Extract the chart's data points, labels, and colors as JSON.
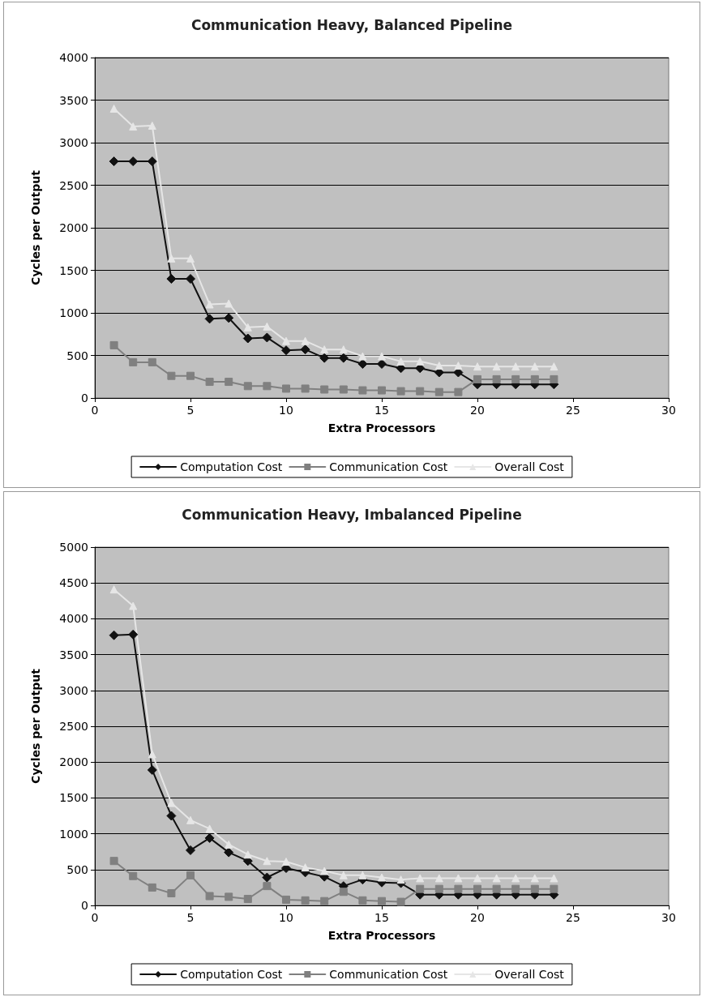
{
  "chart_data": [
    {
      "type": "line",
      "title": "Communication Heavy, Balanced Pipeline",
      "xlabel": "Extra Processors",
      "ylabel": "Cycles per Output",
      "x": [
        1,
        2,
        3,
        4,
        5,
        6,
        7,
        8,
        9,
        10,
        11,
        12,
        13,
        14,
        15,
        16,
        17,
        18,
        19,
        20,
        21,
        22,
        23,
        24
      ],
      "xlim": [
        0,
        30
      ],
      "xticks": [
        0,
        5,
        10,
        15,
        20,
        25,
        30
      ],
      "ylim": [
        0,
        4000
      ],
      "yticks": [
        0,
        500,
        1000,
        1500,
        2000,
        2500,
        3000,
        3500,
        4000
      ],
      "grid": "y",
      "legend": "bottom",
      "line_style": "solid",
      "series": [
        {
          "name": "Computation Cost",
          "color": "#111111",
          "marker": "diamond",
          "values": [
            2780,
            2780,
            2780,
            1400,
            1400,
            930,
            940,
            700,
            710,
            560,
            570,
            470,
            470,
            400,
            400,
            350,
            350,
            300,
            300,
            160,
            160,
            160,
            160,
            160
          ]
        },
        {
          "name": "Communication Cost",
          "color": "#808080",
          "marker": "square",
          "values": [
            620,
            420,
            420,
            260,
            260,
            190,
            190,
            140,
            140,
            110,
            110,
            100,
            100,
            90,
            90,
            80,
            80,
            70,
            70,
            220,
            220,
            220,
            220,
            220
          ]
        },
        {
          "name": "Overall Cost",
          "color": "#e6e6e6",
          "marker": "triangle",
          "values": [
            3400,
            3190,
            3200,
            1640,
            1640,
            1100,
            1110,
            830,
            840,
            670,
            670,
            570,
            570,
            490,
            490,
            430,
            430,
            380,
            380,
            370,
            370,
            370,
            370,
            370
          ]
        }
      ]
    },
    {
      "type": "line",
      "title": "Communication Heavy, Imbalanced Pipeline",
      "xlabel": "Extra Processors",
      "ylabel": "Cycles per Output",
      "x": [
        1,
        2,
        3,
        4,
        5,
        6,
        7,
        8,
        9,
        10,
        11,
        12,
        13,
        14,
        15,
        16,
        17,
        18,
        19,
        20,
        21,
        22,
        23,
        24
      ],
      "xlim": [
        0,
        30
      ],
      "xticks": [
        0,
        5,
        10,
        15,
        20,
        25,
        30
      ],
      "ylim": [
        0,
        5000
      ],
      "yticks": [
        0,
        500,
        1000,
        1500,
        2000,
        2500,
        3000,
        3500,
        4000,
        4500,
        5000
      ],
      "grid": "y",
      "legend": "bottom",
      "line_style": "solid",
      "series": [
        {
          "name": "Computation Cost",
          "color": "#111111",
          "marker": "diamond",
          "values": [
            3770,
            3780,
            1890,
            1250,
            770,
            940,
            740,
            620,
            390,
            520,
            460,
            400,
            270,
            360,
            320,
            310,
            150,
            150,
            150,
            150,
            150,
            150,
            150,
            150
          ]
        },
        {
          "name": "Communication Cost",
          "color": "#808080",
          "marker": "square",
          "values": [
            620,
            410,
            250,
            170,
            420,
            130,
            120,
            90,
            270,
            80,
            70,
            60,
            190,
            70,
            60,
            50,
            230,
            230,
            230,
            230,
            230,
            230,
            230,
            230
          ]
        },
        {
          "name": "Overall Cost",
          "color": "#e6e6e6",
          "marker": "triangle",
          "values": [
            4410,
            4180,
            2110,
            1430,
            1190,
            1070,
            850,
            710,
            620,
            610,
            530,
            480,
            420,
            420,
            390,
            360,
            380,
            380,
            380,
            380,
            380,
            380,
            380,
            380
          ]
        }
      ]
    }
  ]
}
